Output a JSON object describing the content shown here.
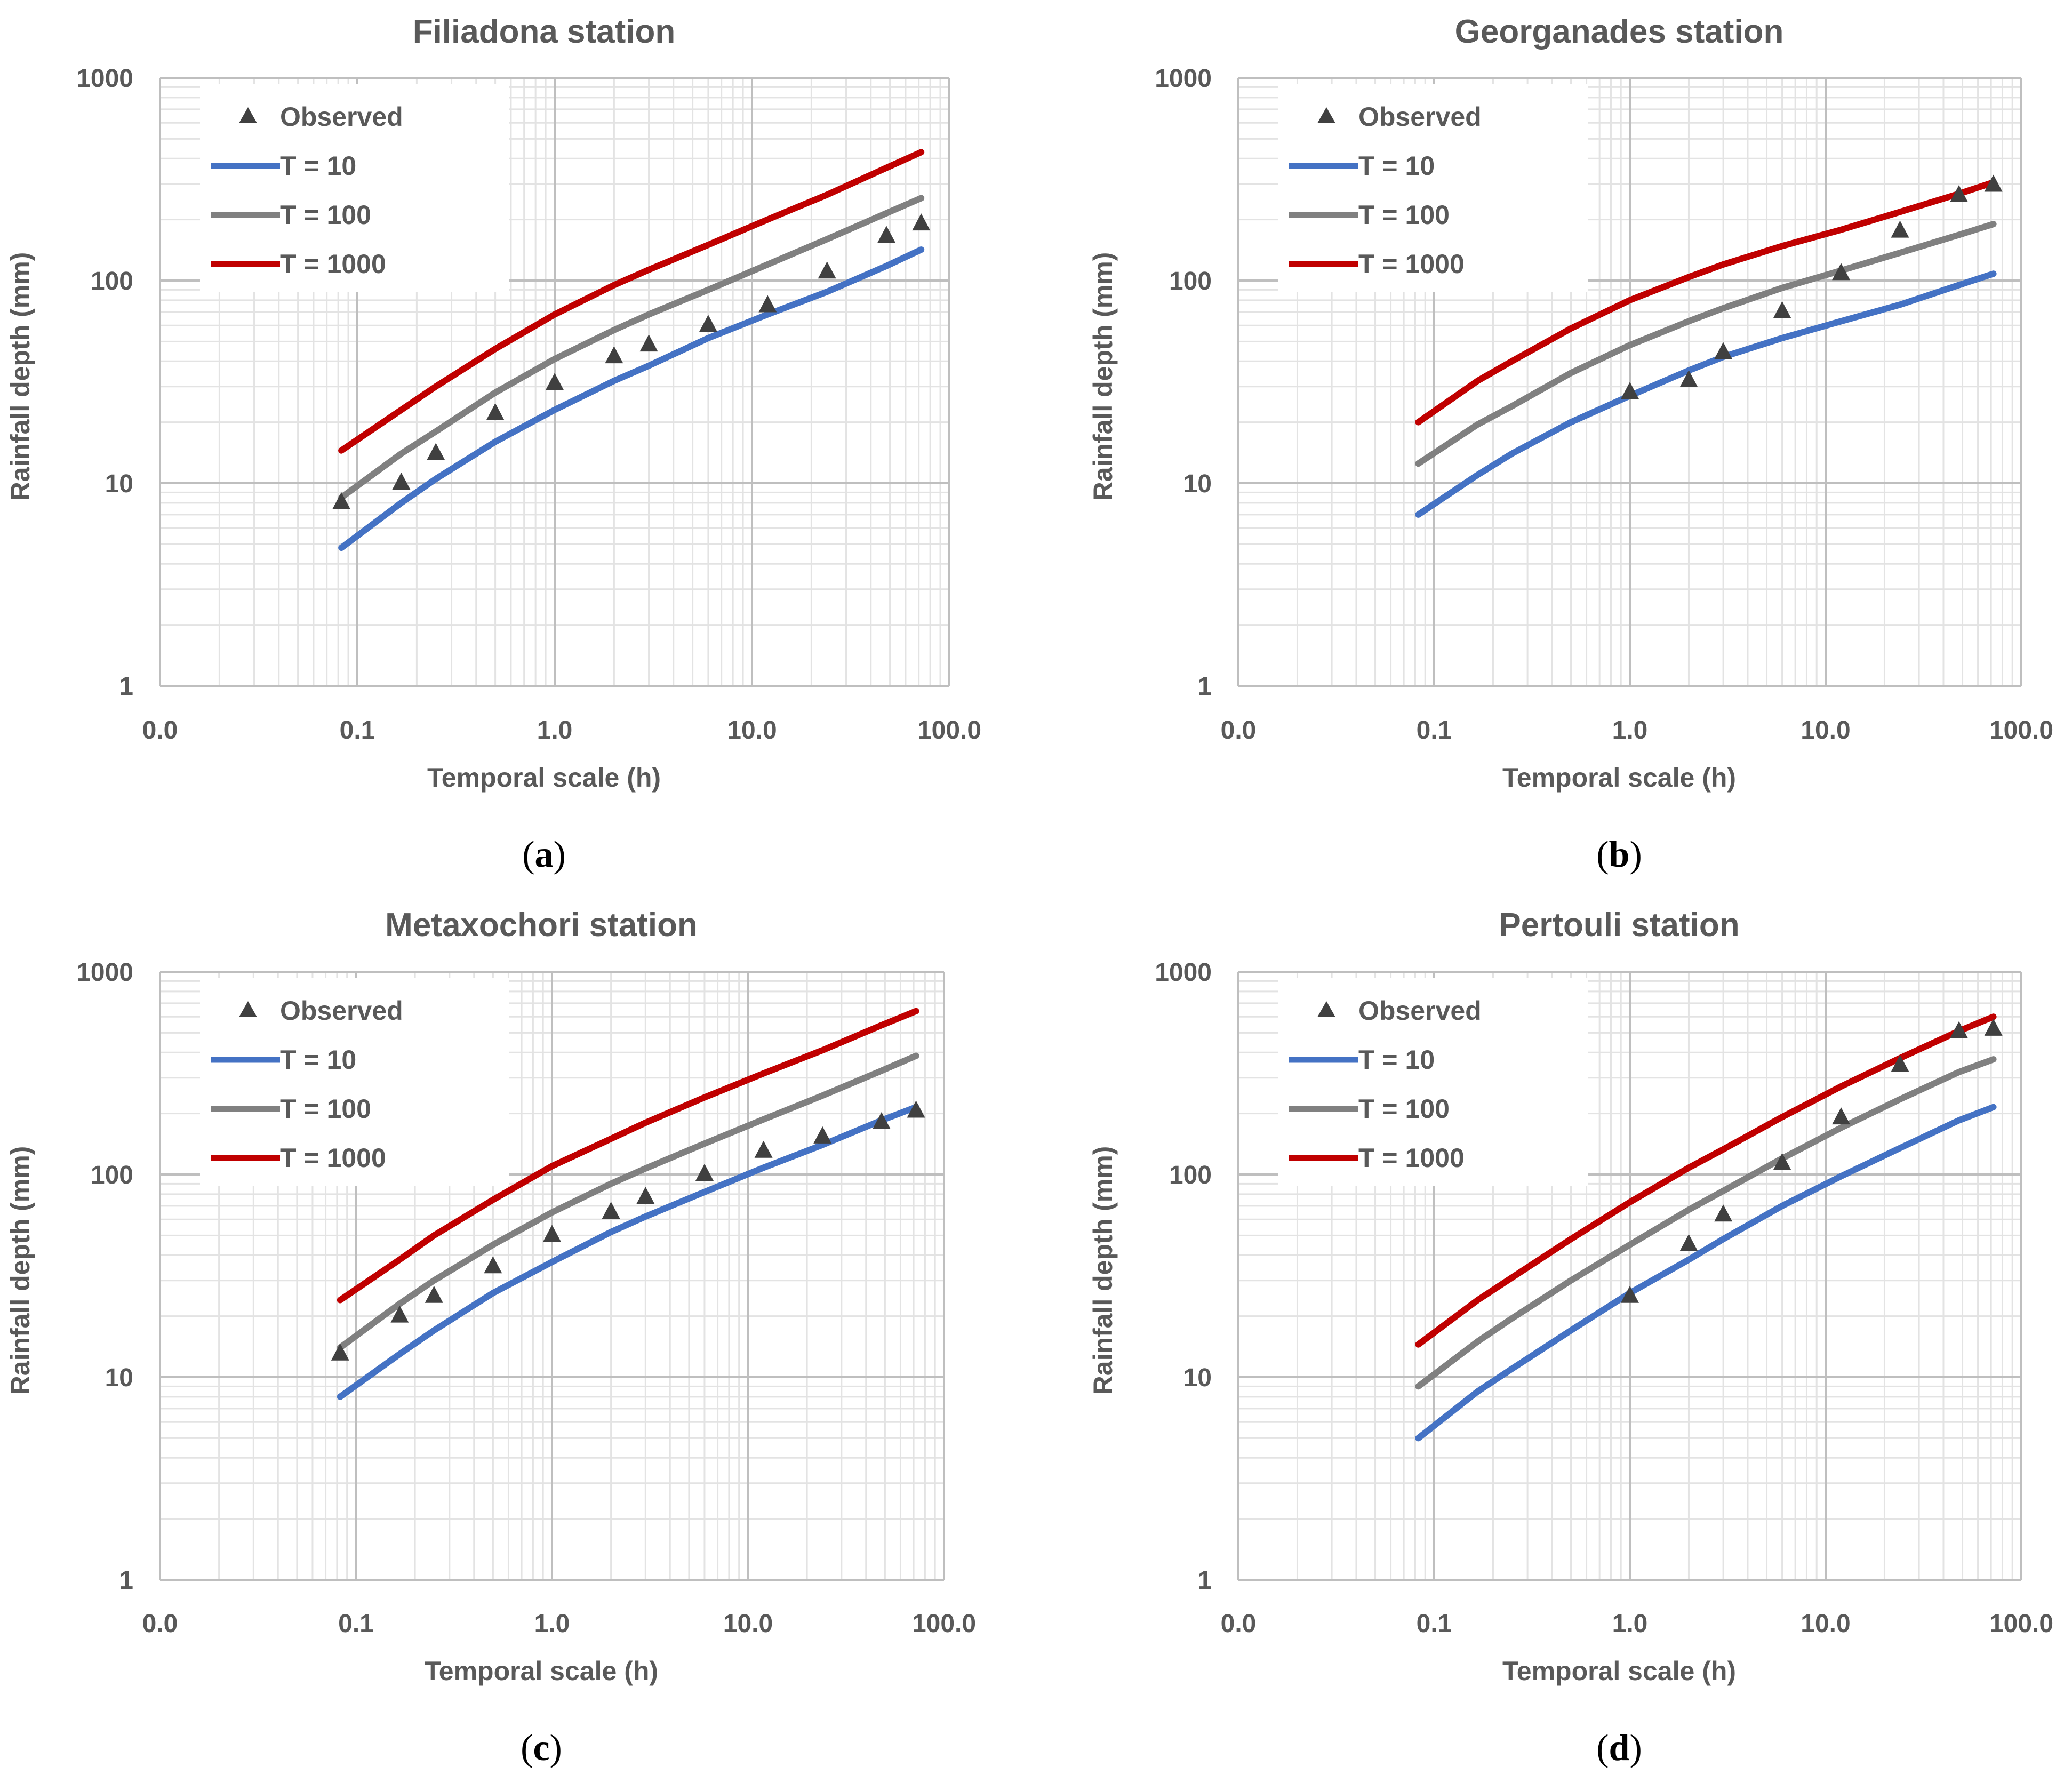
{
  "figure": {
    "panels": [
      "(a)",
      "(b)",
      "(c)",
      "(d)"
    ]
  },
  "colors": {
    "observed": "#404040",
    "t10": "#4472C4",
    "t100": "#808080",
    "t1000": "#C00000",
    "text": "#595959"
  },
  "chart_data": [
    {
      "type": "line",
      "panel": "(a)",
      "panel_letter": "a",
      "title": "Filiadona station",
      "xlabel": "Temporal scale (h)",
      "ylabel": "Rainfall depth (mm)",
      "xscale": "log",
      "yscale": "log",
      "xlim": [
        0.01,
        100
      ],
      "ylim": [
        1,
        1000
      ],
      "xticks": [
        "0.0",
        "0.1",
        "1.0",
        "10.0",
        "100.0"
      ],
      "yticks": [
        "1",
        "10",
        "100",
        "1000"
      ],
      "legend": [
        "Observed",
        "T = 10",
        "T = 100",
        "T = 1000"
      ],
      "observed": {
        "x": [
          0.083,
          0.167,
          0.25,
          0.5,
          1,
          2,
          3,
          6,
          12,
          24,
          48,
          72
        ],
        "y": [
          8,
          10,
          14,
          22,
          31,
          42,
          48,
          60,
          75,
          110,
          165,
          190
        ]
      },
      "series": [
        {
          "name": "T = 10",
          "x": [
            0.083,
            0.167,
            0.25,
            0.5,
            1,
            2,
            3,
            6,
            12,
            24,
            48,
            72
          ],
          "y": [
            4.8,
            8,
            10.5,
            16,
            23,
            32,
            38,
            52,
            68,
            88,
            118,
            142
          ]
        },
        {
          "name": "T = 100",
          "x": [
            0.083,
            0.167,
            0.25,
            0.5,
            1,
            2,
            3,
            6,
            12,
            24,
            48,
            72
          ],
          "y": [
            8.5,
            14,
            18,
            28,
            41,
            57,
            68,
            90,
            120,
            160,
            215,
            255
          ]
        },
        {
          "name": "T = 1000",
          "x": [
            0.083,
            0.167,
            0.25,
            0.5,
            1,
            2,
            3,
            6,
            12,
            24,
            48,
            72
          ],
          "y": [
            14.5,
            23,
            30,
            46,
            68,
            95,
            113,
            150,
            200,
            265,
            360,
            430
          ]
        }
      ]
    },
    {
      "type": "line",
      "panel": "(b)",
      "panel_letter": "b",
      "title": "Georganades station",
      "xlabel": "Temporal scale (h)",
      "ylabel": "Rainfall depth (mm)",
      "xscale": "log",
      "yscale": "log",
      "xlim": [
        0.01,
        100
      ],
      "ylim": [
        1,
        1000
      ],
      "xticks": [
        "0.0",
        "0.1",
        "1.0",
        "10.0",
        "100.0"
      ],
      "yticks": [
        "1",
        "10",
        "100",
        "1000"
      ],
      "legend": [
        "Observed",
        "T = 10",
        "T = 100",
        "T = 1000"
      ],
      "observed": {
        "x": [
          1,
          2,
          3,
          6,
          12,
          24,
          48,
          72
        ],
        "y": [
          28,
          32,
          44,
          70,
          108,
          175,
          262,
          295
        ]
      },
      "series": [
        {
          "name": "T = 10",
          "x": [
            0.083,
            0.167,
            0.25,
            0.5,
            1,
            2,
            3,
            6,
            12,
            24,
            48,
            72
          ],
          "y": [
            7,
            11,
            14,
            20,
            27,
            36,
            42,
            52,
            63,
            76,
            95,
            108
          ]
        },
        {
          "name": "T = 100",
          "x": [
            0.083,
            0.167,
            0.25,
            0.5,
            1,
            2,
            3,
            6,
            12,
            24,
            48,
            72
          ],
          "y": [
            12.5,
            19.5,
            24,
            35,
            48,
            63,
            73,
            92,
            112,
            137,
            168,
            190
          ]
        },
        {
          "name": "T = 1000",
          "x": [
            0.083,
            0.167,
            0.25,
            0.5,
            1,
            2,
            3,
            6,
            12,
            24,
            48,
            72
          ],
          "y": [
            20,
            32,
            40,
            58,
            80,
            104,
            120,
            148,
            178,
            218,
            268,
            305
          ]
        }
      ]
    },
    {
      "type": "line",
      "panel": "(c)",
      "panel_letter": "c",
      "title": "Metaxochori station",
      "xlabel": "Temporal scale (h)",
      "ylabel": "Rainfall depth (mm)",
      "xscale": "log",
      "yscale": "log",
      "xlim": [
        0.01,
        100
      ],
      "ylim": [
        1,
        1000
      ],
      "xticks": [
        "0.0",
        "0.1",
        "1.0",
        "10.0",
        "100.0"
      ],
      "yticks": [
        "1",
        "10",
        "100",
        "1000"
      ],
      "legend": [
        "Observed",
        "T = 10",
        "T = 100",
        "T = 1000"
      ],
      "observed": {
        "x": [
          0.083,
          0.167,
          0.25,
          0.5,
          1,
          2,
          3,
          6,
          12,
          24,
          48,
          72
        ],
        "y": [
          13,
          20,
          25,
          35,
          50,
          65,
          77,
          100,
          130,
          153,
          180,
          205
        ]
      },
      "series": [
        {
          "name": "T = 10",
          "x": [
            0.083,
            0.167,
            0.25,
            0.5,
            1,
            2,
            3,
            6,
            12,
            24,
            48,
            72
          ],
          "y": [
            8,
            13,
            17,
            26,
            37,
            52,
            62,
            82,
            108,
            140,
            185,
            215
          ]
        },
        {
          "name": "T = 100",
          "x": [
            0.083,
            0.167,
            0.25,
            0.5,
            1,
            2,
            3,
            6,
            12,
            24,
            48,
            72
          ],
          "y": [
            14,
            23,
            30,
            45,
            65,
            90,
            107,
            142,
            187,
            245,
            325,
            385
          ]
        },
        {
          "name": "T = 1000",
          "x": [
            0.083,
            0.167,
            0.25,
            0.5,
            1,
            2,
            3,
            6,
            12,
            24,
            48,
            72
          ],
          "y": [
            24,
            38,
            50,
            75,
            110,
            150,
            180,
            240,
            315,
            410,
            545,
            640
          ]
        }
      ]
    },
    {
      "type": "line",
      "panel": "(d)",
      "panel_letter": "d",
      "title": "Pertouli station",
      "xlabel": "Temporal scale (h)",
      "ylabel": "Rainfall depth (mm)",
      "xscale": "log",
      "yscale": "log",
      "xlim": [
        0.01,
        100
      ],
      "ylim": [
        1,
        1000
      ],
      "xticks": [
        "0.0",
        "0.1",
        "1.0",
        "10.0",
        "100.0"
      ],
      "yticks": [
        "1",
        "10",
        "100",
        "1000"
      ],
      "legend": [
        "Observed",
        "T = 10",
        "T = 100",
        "T = 1000"
      ],
      "observed": {
        "x": [
          1,
          2,
          3,
          6,
          12,
          24,
          48,
          72
        ],
        "y": [
          25,
          45,
          63,
          113,
          190,
          345,
          505,
          520
        ]
      },
      "series": [
        {
          "name": "T = 10",
          "x": [
            0.083,
            0.167,
            0.25,
            0.5,
            1,
            2,
            3,
            6,
            12,
            24,
            48,
            72
          ],
          "y": [
            5,
            8.5,
            11,
            17,
            26,
            38,
            48,
            70,
            98,
            135,
            185,
            215
          ]
        },
        {
          "name": "T = 100",
          "x": [
            0.083,
            0.167,
            0.25,
            0.5,
            1,
            2,
            3,
            6,
            12,
            24,
            48,
            72
          ],
          "y": [
            9,
            15,
            19.5,
            30,
            45,
            67,
            83,
            120,
            170,
            235,
            320,
            370
          ]
        },
        {
          "name": "T = 1000",
          "x": [
            0.083,
            0.167,
            0.25,
            0.5,
            1,
            2,
            3,
            6,
            12,
            24,
            48,
            72
          ],
          "y": [
            14.5,
            24,
            31,
            48,
            73,
            108,
            133,
            192,
            272,
            375,
            510,
            600
          ]
        }
      ]
    }
  ]
}
